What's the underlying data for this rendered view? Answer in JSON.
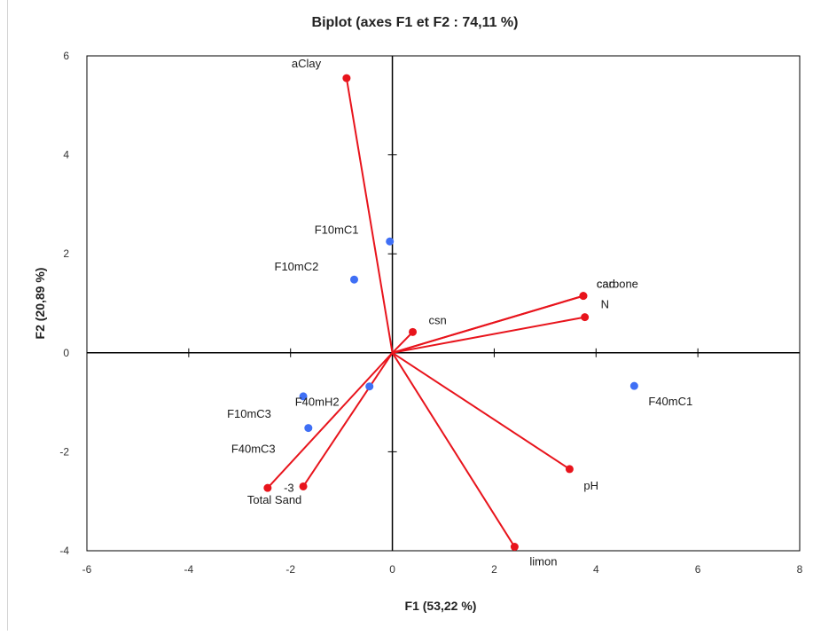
{
  "chart_data": {
    "type": "scatter",
    "title": "Biplot (axes F1 et F2 : 74,11 %)",
    "xlabel": "F1 (53,22 %)",
    "ylabel": "F2 (20,89 %)",
    "xlim": [
      -6,
      8
    ],
    "ylim": [
      -4,
      6
    ],
    "x_ticks": [
      "-6",
      "-4",
      "-2",
      "0",
      "2",
      "4",
      "6",
      "8"
    ],
    "y_ticks": [
      "-4",
      "-2",
      "0",
      "2",
      "4",
      "6"
    ],
    "grid": false,
    "colors": {
      "variables": "#e8141c",
      "observations": "#3f6ff5",
      "axes": "#000000"
    },
    "observations": [
      {
        "label": "F10mC1",
        "x": -0.05,
        "y": 2.25
      },
      {
        "label": "F10mC2",
        "x": -0.75,
        "y": 1.48
      },
      {
        "label": "F10mC3",
        "x": -1.75,
        "y": -0.88
      },
      {
        "label": "F40mH2",
        "x": -0.45,
        "y": -0.68
      },
      {
        "label": "F40mC3",
        "x": -1.65,
        "y": -1.52
      },
      {
        "label": "F40mC1",
        "x": 4.75,
        "y": -0.67
      }
    ],
    "variables": [
      {
        "label": "aClay",
        "x": -0.9,
        "y": 5.55
      },
      {
        "label": "carbone",
        "x": 3.75,
        "y": 1.15
      },
      {
        "label": "cao",
        "x": 3.75,
        "y": 1.15
      },
      {
        "label": "N",
        "x": 3.78,
        "y": 0.72
      },
      {
        "label": "csn",
        "x": 0.4,
        "y": 0.42
      },
      {
        "label": "pH",
        "x": 3.48,
        "y": -2.35
      },
      {
        "label": "limon",
        "x": 2.4,
        "y": -3.92
      },
      {
        "label": "Total Sand",
        "x": -2.45,
        "y": -2.73
      },
      {
        "label": "-3",
        "x": -1.75,
        "y": -2.7
      }
    ]
  }
}
